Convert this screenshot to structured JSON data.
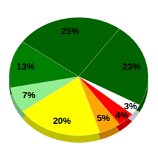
{
  "chart_data": {
    "type": "pie",
    "values": [
      25,
      23,
      3,
      4,
      5,
      20,
      7,
      13
    ],
    "value_labels": [
      "25%",
      "23%",
      "3%",
      "4%",
      "5%",
      "20%",
      "7%",
      "13%"
    ],
    "colors": [
      "#006400",
      "#006400",
      "#ffffff",
      "#ff0000",
      "#ffa500",
      "#ffff00",
      "#90ee90",
      "#008000"
    ],
    "data_labels": true
  }
}
